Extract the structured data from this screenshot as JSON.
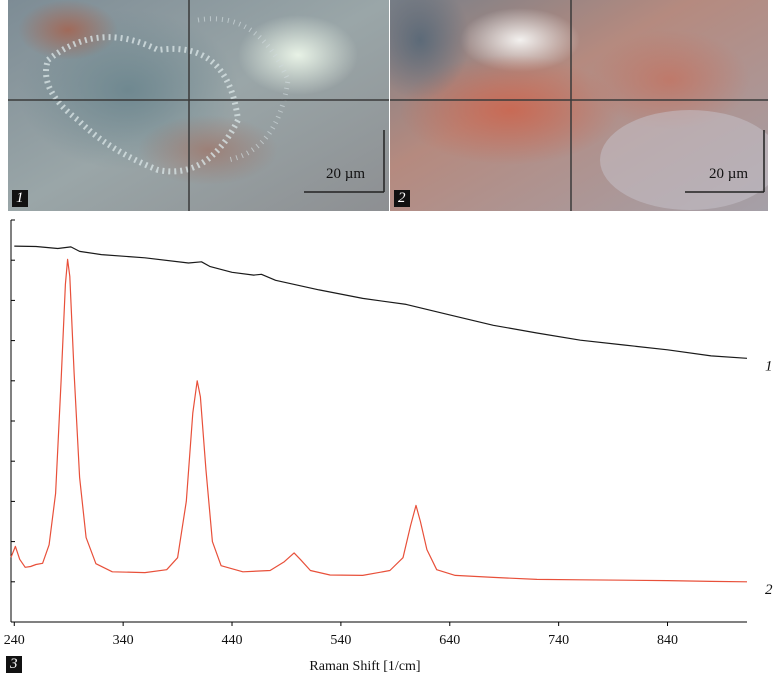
{
  "panels": [
    {
      "badge": "1",
      "scale_label": "20 µm"
    },
    {
      "badge": "2",
      "scale_label": "20 µm"
    },
    {
      "badge": "3"
    }
  ],
  "colors": {
    "spectrum_1": "#1a1a1a",
    "spectrum_2": "#e8503a",
    "photo_1_base": "#8e9aa0",
    "photo_2_base": "#b8877a"
  },
  "chart_data": {
    "type": "line",
    "xlabel": "Raman Shift [1/cm]",
    "ylabel": "",
    "xlim": [
      237,
      913
    ],
    "ylim": [
      0,
      100
    ],
    "x_ticks": [
      240,
      340,
      440,
      540,
      640,
      740,
      840
    ],
    "y_ticks_labeled": false,
    "grid": false,
    "series": [
      {
        "name": "1",
        "points": [
          [
            240,
            93.5
          ],
          [
            260,
            93.4
          ],
          [
            280,
            92.9
          ],
          [
            292,
            93.3
          ],
          [
            300,
            92.2
          ],
          [
            320,
            91.4
          ],
          [
            360,
            90.6
          ],
          [
            400,
            89.3
          ],
          [
            412,
            89.6
          ],
          [
            420,
            88.4
          ],
          [
            440,
            87.0
          ],
          [
            460,
            86.3
          ],
          [
            467,
            86.5
          ],
          [
            480,
            85.0
          ],
          [
            520,
            82.6
          ],
          [
            560,
            80.5
          ],
          [
            600,
            79.0
          ],
          [
            640,
            76.4
          ],
          [
            680,
            73.8
          ],
          [
            720,
            71.9
          ],
          [
            760,
            70.1
          ],
          [
            800,
            68.9
          ],
          [
            840,
            67.7
          ],
          [
            880,
            66.2
          ],
          [
            913,
            65.6
          ]
        ]
      },
      {
        "name": "2",
        "points": [
          [
            237,
            16.1
          ],
          [
            241,
            18.8
          ],
          [
            245,
            15.6
          ],
          [
            250,
            13.6
          ],
          [
            255,
            13.8
          ],
          [
            260,
            14.3
          ],
          [
            266,
            14.6
          ],
          [
            272,
            19.2
          ],
          [
            278,
            32.0
          ],
          [
            283,
            60.0
          ],
          [
            287,
            84.0
          ],
          [
            289,
            90.2
          ],
          [
            291,
            86.0
          ],
          [
            295,
            62.0
          ],
          [
            300,
            36.0
          ],
          [
            306,
            21.0
          ],
          [
            315,
            14.5
          ],
          [
            330,
            12.5
          ],
          [
            360,
            12.3
          ],
          [
            380,
            13.0
          ],
          [
            390,
            16.0
          ],
          [
            398,
            30.0
          ],
          [
            404,
            52.0
          ],
          [
            408,
            60.0
          ],
          [
            411,
            56.0
          ],
          [
            416,
            38.0
          ],
          [
            422,
            20.0
          ],
          [
            430,
            14.0
          ],
          [
            450,
            12.5
          ],
          [
            475,
            12.8
          ],
          [
            488,
            15.0
          ],
          [
            497,
            17.2
          ],
          [
            503,
            15.5
          ],
          [
            512,
            12.8
          ],
          [
            530,
            11.7
          ],
          [
            560,
            11.6
          ],
          [
            585,
            12.8
          ],
          [
            597,
            16.0
          ],
          [
            604,
            24.0
          ],
          [
            609,
            29.0
          ],
          [
            613,
            25.0
          ],
          [
            619,
            18.0
          ],
          [
            628,
            13.0
          ],
          [
            645,
            11.6
          ],
          [
            680,
            11.1
          ],
          [
            720,
            10.6
          ],
          [
            760,
            10.5
          ],
          [
            800,
            10.4
          ],
          [
            840,
            10.3
          ],
          [
            880,
            10.1
          ],
          [
            913,
            10.0
          ]
        ]
      }
    ]
  }
}
